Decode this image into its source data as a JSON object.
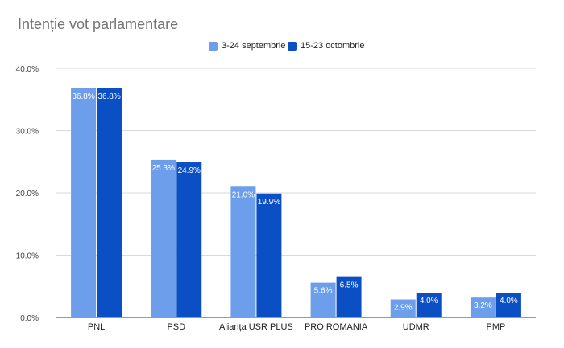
{
  "chart_data": {
    "type": "bar",
    "title": "Intenție vot parlamentare",
    "categories": [
      "PNL",
      "PSD",
      "Alianța USR PLUS",
      "PRO ROMANIA",
      "UDMR",
      "PMP"
    ],
    "series": [
      {
        "name": "3-24 septembrie",
        "values": [
          36.8,
          25.3,
          21.0,
          5.6,
          2.9,
          3.2
        ],
        "labels": [
          "36.8%",
          "25.3%",
          "21.0%",
          "5.6%",
          "2.9%",
          "3.2%"
        ],
        "color": "#6d9eeb",
        "label_color": "#ffffff"
      },
      {
        "name": "15-23 octombrie",
        "values": [
          36.8,
          24.9,
          19.9,
          6.5,
          4.0,
          4.0
        ],
        "labels": [
          "36.8%",
          "24.9%",
          "19.9%",
          "6.5%",
          "4.0%",
          "4.0%"
        ],
        "color": "#0b4fc4",
        "label_color": "#ffffff"
      }
    ],
    "ylim": [
      0,
      40
    ],
    "yticks": [
      0,
      10,
      20,
      30,
      40
    ],
    "ytick_labels": [
      "0.0%",
      "10.0%",
      "20.0%",
      "30.0%",
      "40.0%"
    ],
    "grid": true,
    "legend_position": "top-center",
    "gridline_color": "#d9d9d9",
    "axis_color": "#333333"
  }
}
